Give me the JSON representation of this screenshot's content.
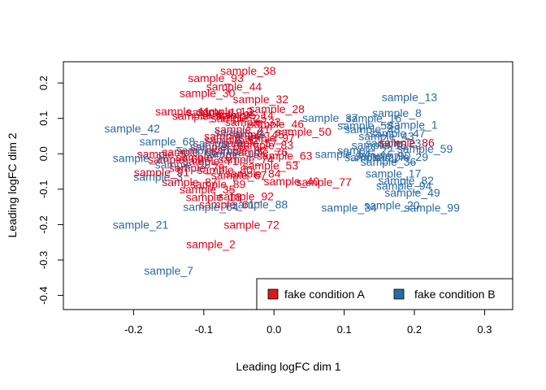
{
  "chart_data": {
    "type": "scatter",
    "title": "",
    "xlabel": "Leading logFC dim 1",
    "ylabel": "Leading logFC dim 2",
    "xlim": [
      -0.3,
      0.34
    ],
    "ylim": [
      -0.44,
      0.26
    ],
    "xticks": [
      "-0.2",
      "-0.1",
      "0.0",
      "0.1",
      "0.2",
      "0.3"
    ],
    "xtick_values": [
      -0.2,
      -0.1,
      0.0,
      0.1,
      0.2,
      0.3
    ],
    "yticks": [
      "-0.4",
      "-0.3",
      "-0.2",
      "-0.1",
      "0.0",
      "0.1",
      "0.2"
    ],
    "ytick_values": [
      -0.4,
      -0.3,
      -0.2,
      -0.1,
      0.0,
      0.1,
      0.2
    ],
    "legend": {
      "position": "bottom-right",
      "entries": [
        {
          "name": "fake condition A",
          "color": "#d7191c"
        },
        {
          "name": "fake condition B",
          "color": "#2b6aa3"
        }
      ]
    },
    "series": [
      {
        "name": "fake condition A",
        "color": "#e0001a",
        "points": [
          {
            "label": "sample_38",
            "x": -0.037,
            "y": 0.235
          },
          {
            "label": "sample_93",
            "x": -0.083,
            "y": 0.214
          },
          {
            "label": "sample_44",
            "x": -0.057,
            "y": 0.19
          },
          {
            "label": "sample_30",
            "x": -0.095,
            "y": 0.172
          },
          {
            "label": "sample_32",
            "x": -0.019,
            "y": 0.155
          },
          {
            "label": "sample_28",
            "x": 0.004,
            "y": 0.127
          },
          {
            "label": "sample_11",
            "x": -0.13,
            "y": 0.12
          },
          {
            "label": "sample_9",
            "x": -0.11,
            "y": 0.107
          },
          {
            "label": "sample_14",
            "x": -0.04,
            "y": 0.11
          },
          {
            "label": "sample_46",
            "x": 0.003,
            "y": 0.085
          },
          {
            "label": "sample_50",
            "x": 0.042,
            "y": 0.063
          },
          {
            "label": "sample_24",
            "x": -0.06,
            "y": 0.05
          },
          {
            "label": "sample_83",
            "x": -0.012,
            "y": 0.025
          },
          {
            "label": "sample_5",
            "x": -0.16,
            "y": 0.0
          },
          {
            "label": "sample_63",
            "x": 0.015,
            "y": -0.005
          },
          {
            "label": "sample_70",
            "x": -0.1,
            "y": -0.01
          },
          {
            "label": "sample_53",
            "x": -0.005,
            "y": -0.033
          },
          {
            "label": "sample_91",
            "x": -0.16,
            "y": -0.052
          },
          {
            "label": "sample_67",
            "x": -0.05,
            "y": -0.06
          },
          {
            "label": "sample_40",
            "x": 0.025,
            "y": -0.077
          },
          {
            "label": "sample_77",
            "x": 0.071,
            "y": -0.08
          },
          {
            "label": "sample_35",
            "x": -0.095,
            "y": -0.1
          },
          {
            "label": "sample_18",
            "x": -0.086,
            "y": -0.122
          },
          {
            "label": "sample_61",
            "x": -0.067,
            "y": -0.143
          },
          {
            "label": "sample_72",
            "x": -0.032,
            "y": -0.2
          },
          {
            "label": "sample_2",
            "x": -0.09,
            "y": -0.255
          },
          {
            "label": "sample_86",
            "x": 0.189,
            "y": 0.032
          }
        ]
      },
      {
        "name": "fake condition B",
        "color": "#2b6aa3",
        "points": [
          {
            "label": "sample_13",
            "x": 0.193,
            "y": 0.16
          },
          {
            "label": "sample_8",
            "x": 0.175,
            "y": 0.115
          },
          {
            "label": "sample_37",
            "x": 0.08,
            "y": 0.102
          },
          {
            "label": "sample_16",
            "x": 0.142,
            "y": 0.1
          },
          {
            "label": "sample_1",
            "x": 0.198,
            "y": 0.082
          },
          {
            "label": "sample_58",
            "x": 0.13,
            "y": 0.08
          },
          {
            "label": "sample_47",
            "x": 0.176,
            "y": 0.058
          },
          {
            "label": "sample_42",
            "x": -0.202,
            "y": 0.072
          },
          {
            "label": "sample_68",
            "x": -0.152,
            "y": 0.035
          },
          {
            "label": "sample_59",
            "x": 0.215,
            "y": 0.015
          },
          {
            "label": "sample_54",
            "x": 0.098,
            "y": 0.0
          },
          {
            "label": "sample_90",
            "x": 0.155,
            "y": -0.005
          },
          {
            "label": "sample_36",
            "x": 0.163,
            "y": -0.022
          },
          {
            "label": "sample_26",
            "x": -0.19,
            "y": -0.012
          },
          {
            "label": "sample_17",
            "x": 0.17,
            "y": -0.055
          },
          {
            "label": "sample_3",
            "x": -0.165,
            "y": -0.065
          },
          {
            "label": "sample_82",
            "x": 0.188,
            "y": -0.075
          },
          {
            "label": "sample_94",
            "x": 0.185,
            "y": -0.09
          },
          {
            "label": "sample_49",
            "x": 0.197,
            "y": -0.11
          },
          {
            "label": "sample_88",
            "x": -0.02,
            "y": -0.143
          },
          {
            "label": "sample_64",
            "x": -0.09,
            "y": -0.15
          },
          {
            "label": "sample_34",
            "x": 0.107,
            "y": -0.152
          },
          {
            "label": "sample_20",
            "x": 0.168,
            "y": -0.145
          },
          {
            "label": "sample_99",
            "x": 0.225,
            "y": -0.152
          },
          {
            "label": "sample_21",
            "x": -0.19,
            "y": -0.2
          },
          {
            "label": "sample_7",
            "x": -0.15,
            "y": -0.33
          }
        ]
      }
    ],
    "clutter": {
      "colors": [
        "#e0001a",
        "#2b6aa3"
      ],
      "points": [
        {
          "s": 0,
          "label": "sample_12",
          "x": -0.07,
          "y": 0.12
        },
        {
          "s": 0,
          "label": "sample_19",
          "x": -0.085,
          "y": 0.118
        },
        {
          "s": 0,
          "label": "sample_25",
          "x": -0.05,
          "y": 0.1
        },
        {
          "s": 0,
          "label": "sample_33",
          "x": -0.03,
          "y": 0.09
        },
        {
          "s": 0,
          "label": "sample_41",
          "x": -0.045,
          "y": 0.07
        },
        {
          "s": 0,
          "label": "sample_45",
          "x": -0.025,
          "y": 0.055
        },
        {
          "s": 0,
          "label": "sample_52",
          "x": -0.06,
          "y": 0.04
        },
        {
          "s": 0,
          "label": "sample_57",
          "x": -0.035,
          "y": 0.03
        },
        {
          "s": 0,
          "label": "sample_60",
          "x": -0.08,
          "y": 0.02
        },
        {
          "s": 0,
          "label": "sample_62",
          "x": -0.05,
          "y": 0.01
        },
        {
          "s": 0,
          "label": "sample_65",
          "x": -0.12,
          "y": 0.005
        },
        {
          "s": 0,
          "label": "sample_69",
          "x": -0.14,
          "y": -0.015
        },
        {
          "s": 0,
          "label": "sample_71",
          "x": -0.09,
          "y": -0.02
        },
        {
          "s": 0,
          "label": "sample_74",
          "x": -0.04,
          "y": -0.015
        },
        {
          "s": 0,
          "label": "sample_76",
          "x": -0.02,
          "y": 0.005
        },
        {
          "s": 0,
          "label": "sample_79",
          "x": -0.11,
          "y": -0.04
        },
        {
          "s": 0,
          "label": "sample_80",
          "x": -0.07,
          "y": -0.045
        },
        {
          "s": 0,
          "label": "sample_84",
          "x": -0.03,
          "y": -0.055
        },
        {
          "s": 0,
          "label": "sample_87",
          "x": -0.12,
          "y": -0.08
        },
        {
          "s": 0,
          "label": "sample_89",
          "x": -0.08,
          "y": -0.085
        },
        {
          "s": 0,
          "label": "sample_92",
          "x": -0.04,
          "y": -0.12
        },
        {
          "s": 0,
          "label": "sample_95",
          "x": -0.065,
          "y": 0.11
        },
        {
          "s": 0,
          "label": "sample_97",
          "x": -0.01,
          "y": 0.045
        },
        {
          "s": 1,
          "label": "sample_4",
          "x": -0.05,
          "y": 0.06
        },
        {
          "s": 1,
          "label": "sample_6",
          "x": -0.08,
          "y": 0.03
        },
        {
          "s": 1,
          "label": "sample_10",
          "x": -0.06,
          "y": 0.0
        },
        {
          "s": 1,
          "label": "sample_15",
          "x": 0.15,
          "y": 0.025
        },
        {
          "s": 1,
          "label": "sample_22",
          "x": 0.13,
          "y": 0.01
        },
        {
          "s": 1,
          "label": "sample_23",
          "x": 0.17,
          "y": 0.03
        },
        {
          "s": 1,
          "label": "sample_27",
          "x": 0.14,
          "y": -0.01
        },
        {
          "s": 1,
          "label": "sample_29",
          "x": 0.18,
          "y": -0.008
        },
        {
          "s": 1,
          "label": "sample_31",
          "x": -0.1,
          "y": 0.01
        },
        {
          "s": 1,
          "label": "sample_39",
          "x": -0.13,
          "y": -0.03
        },
        {
          "s": 1,
          "label": "sample_43",
          "x": 0.16,
          "y": 0.05
        },
        {
          "s": 1,
          "label": "sample_48",
          "x": 0.14,
          "y": 0.07
        }
      ]
    }
  }
}
